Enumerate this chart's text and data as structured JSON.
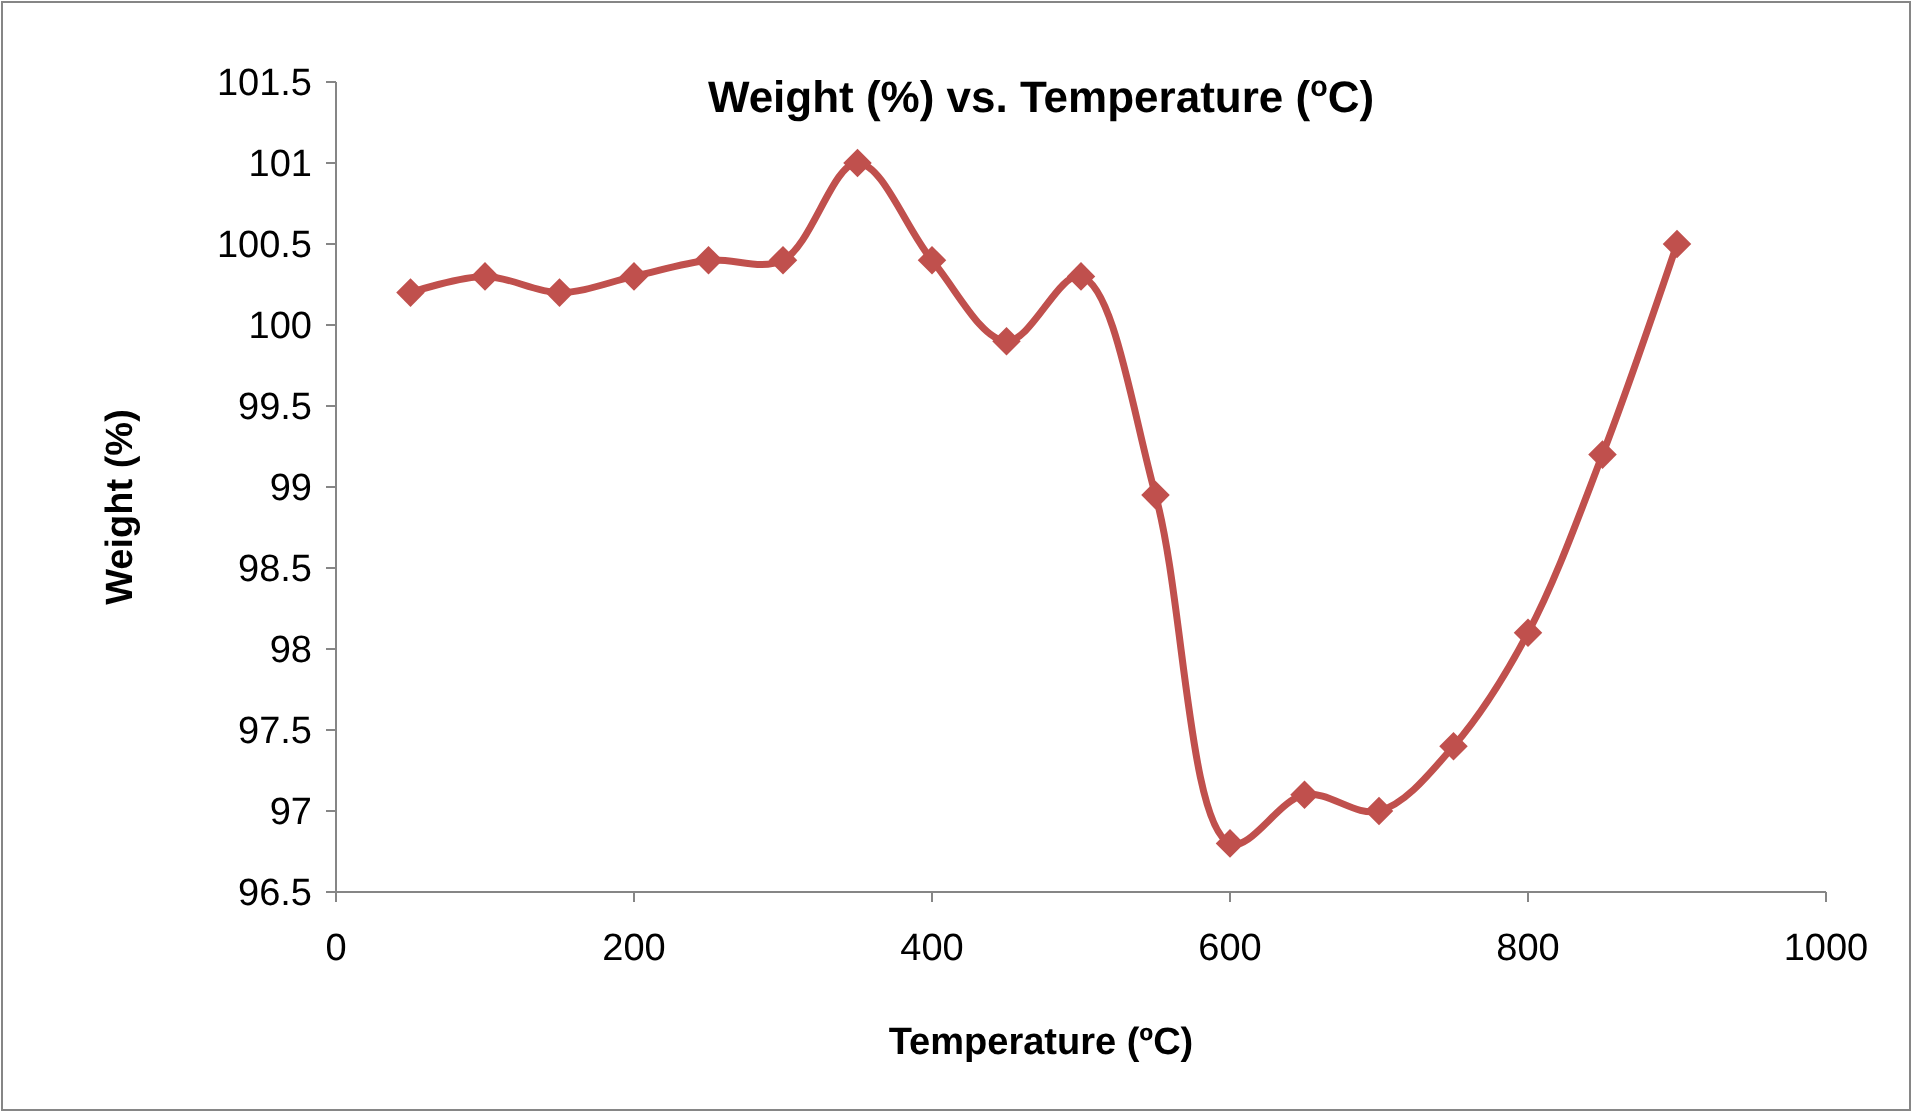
{
  "chart_data": {
    "type": "line",
    "title": "Weight (%) vs. Temperature ($^{o}$C)",
    "xlabel": "Temperature (ºC)",
    "ylabel": "Weight (%)",
    "x": [
      50,
      100,
      150,
      200,
      250,
      300,
      350,
      400,
      450,
      500,
      550,
      600,
      650,
      700,
      750,
      800,
      850,
      900
    ],
    "series": [
      {
        "color": "#c0504d",
        "values": [
          100.2,
          100.3,
          100.2,
          100.3,
          100.4,
          100.4,
          101.0,
          100.4,
          99.9,
          100.3,
          98.95,
          96.8,
          97.1,
          97.0,
          97.4,
          98.1,
          99.2,
          100.5
        ]
      }
    ],
    "xlim": [
      0,
      1000
    ],
    "xticks": [
      0,
      200,
      400,
      600,
      800,
      1000
    ],
    "ylim": [
      96.5,
      101.5
    ],
    "yticks": [
      96.5,
      97,
      97.5,
      98,
      98.5,
      99,
      99.5,
      100,
      100.5,
      101,
      101.5
    ],
    "grid": false,
    "marker": "diamond",
    "line_style": "solid"
  }
}
